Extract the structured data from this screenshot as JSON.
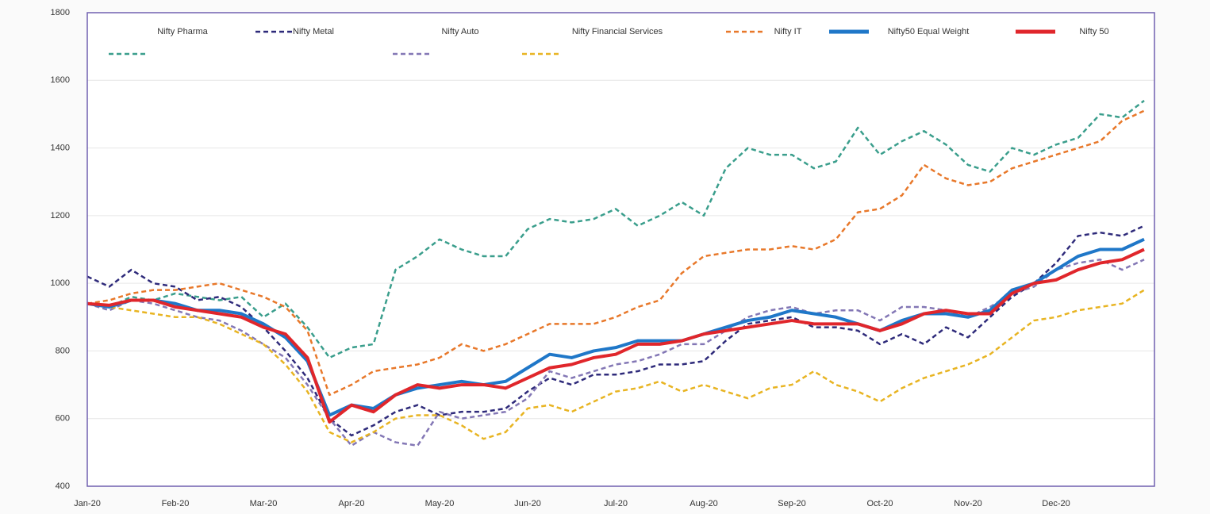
{
  "chart_data": {
    "type": "line",
    "categories": [
      "Jan-20",
      null,
      null,
      null,
      "Feb-20",
      null,
      null,
      null,
      "Mar-20",
      null,
      null,
      null,
      "Apr-20",
      null,
      null,
      null,
      "May-20",
      null,
      null,
      null,
      "Jun-20",
      null,
      null,
      null,
      "Jul-20",
      null,
      null,
      null,
      "Aug-20",
      null,
      null,
      null,
      "Sep-20",
      null,
      null,
      null,
      "Oct-20",
      null,
      null,
      null,
      "Nov-20",
      null,
      null,
      null,
      "Dec-20",
      null,
      null,
      null,
      null
    ],
    "ylim": [
      400,
      1800
    ],
    "yticks": [
      400,
      600,
      800,
      1000,
      1200,
      1400,
      1600,
      1800
    ],
    "grid": true,
    "series": [
      {
        "name": "Nifty Pharma",
        "color": "#3a9e8c",
        "dashed": true,
        "values": [
          940,
          930,
          960,
          950,
          970,
          960,
          950,
          960,
          900,
          940,
          870,
          780,
          810,
          820,
          1040,
          1080,
          1130,
          1100,
          1080,
          1080,
          1160,
          1190,
          1180,
          1190,
          1220,
          1170,
          1200,
          1240,
          1200,
          1340,
          1400,
          1380,
          1380,
          1340,
          1360,
          1460,
          1380,
          1420,
          1450,
          1410,
          1350,
          1330,
          1400,
          1380,
          1410,
          1430,
          1500,
          1490,
          1540
        ]
      },
      {
        "name": "Nifty Metal",
        "color": "#2e2a7a",
        "dashed": true,
        "values": [
          1020,
          990,
          1040,
          1000,
          990,
          950,
          960,
          930,
          870,
          800,
          720,
          600,
          550,
          580,
          620,
          640,
          610,
          620,
          620,
          630,
          680,
          720,
          700,
          730,
          730,
          740,
          760,
          760,
          770,
          830,
          880,
          890,
          900,
          870,
          870,
          860,
          820,
          850,
          820,
          870,
          840,
          900,
          960,
          1000,
          1060,
          1140,
          1150,
          1140,
          1170
        ]
      },
      {
        "name": "Nifty Auto",
        "color": "#8377b5",
        "dashed": true,
        "values": [
          940,
          920,
          950,
          940,
          920,
          900,
          890,
          860,
          820,
          780,
          700,
          600,
          520,
          560,
          530,
          520,
          620,
          600,
          610,
          620,
          660,
          740,
          720,
          740,
          760,
          770,
          790,
          820,
          820,
          860,
          900,
          920,
          930,
          910,
          920,
          920,
          890,
          930,
          930,
          920,
          900,
          930,
          970,
          990,
          1040,
          1060,
          1070,
          1040,
          1070
        ]
      },
      {
        "name": "Nifty Financial Services",
        "color": "#e8b422",
        "dashed": true,
        "values": [
          940,
          930,
          920,
          910,
          900,
          900,
          880,
          850,
          820,
          760,
          680,
          560,
          530,
          560,
          600,
          610,
          610,
          580,
          540,
          560,
          630,
          640,
          620,
          650,
          680,
          690,
          710,
          680,
          700,
          680,
          660,
          690,
          700,
          740,
          700,
          680,
          650,
          690,
          720,
          740,
          760,
          790,
          840,
          890,
          900,
          920,
          930,
          940,
          980
        ]
      },
      {
        "name": "Nifty IT",
        "color": "#e8782a",
        "dashed": true,
        "values": [
          940,
          950,
          970,
          980,
          980,
          990,
          1000,
          980,
          960,
          930,
          860,
          670,
          700,
          740,
          750,
          760,
          780,
          820,
          800,
          820,
          850,
          880,
          880,
          880,
          900,
          930,
          950,
          1030,
          1080,
          1090,
          1100,
          1100,
          1110,
          1100,
          1130,
          1210,
          1220,
          1260,
          1350,
          1310,
          1290,
          1300,
          1340,
          1360,
          1380,
          1400,
          1420,
          1480,
          1510
        ]
      },
      {
        "name": "Nifty50 Equal Weight",
        "color": "#1f77c8",
        "dashed": false,
        "values": [
          940,
          930,
          950,
          950,
          940,
          920,
          920,
          910,
          880,
          840,
          770,
          610,
          640,
          630,
          670,
          690,
          700,
          710,
          700,
          710,
          750,
          790,
          780,
          800,
          810,
          830,
          830,
          830,
          850,
          870,
          890,
          900,
          920,
          910,
          900,
          880,
          860,
          890,
          910,
          910,
          900,
          920,
          980,
          1000,
          1040,
          1080,
          1100,
          1100,
          1130
        ]
      },
      {
        "name": "Nifty 50",
        "color": "#e0262b",
        "dashed": false,
        "values": [
          940,
          935,
          950,
          950,
          930,
          920,
          910,
          900,
          870,
          850,
          780,
          590,
          640,
          620,
          670,
          700,
          690,
          700,
          700,
          690,
          720,
          750,
          760,
          780,
          790,
          820,
          820,
          830,
          850,
          860,
          870,
          880,
          890,
          880,
          880,
          880,
          860,
          880,
          910,
          920,
          910,
          910,
          970,
          1000,
          1010,
          1040,
          1060,
          1070,
          1100
        ]
      }
    ]
  }
}
